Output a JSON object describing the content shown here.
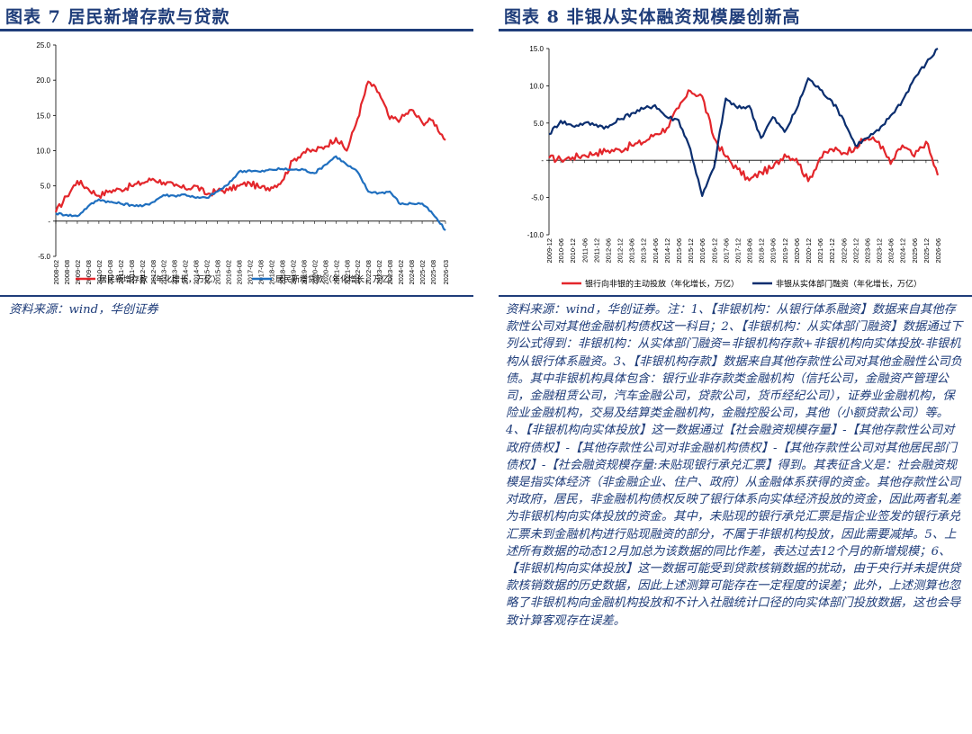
{
  "left": {
    "title": "图表 7  居民新增存款与贷款",
    "source": "资料来源：wind，华创证券",
    "chart_data": {
      "type": "line",
      "title": "",
      "xlabel": "",
      "ylabel": "",
      "ylim": [
        -5,
        25
      ],
      "yticks": [
        -5,
        0,
        5,
        10,
        15,
        20,
        25
      ],
      "ytick_labels": [
        "-5.0",
        "-",
        "5.0",
        "10.0",
        "15.0",
        "20.0",
        "25.0"
      ],
      "x_start": "2008-02",
      "x_end": "2026-03",
      "x_tick_labels": [
        "2008-02",
        "2008-08",
        "2009-02",
        "2009-08",
        "2010-02",
        "2010-08",
        "2011-02",
        "2011-08",
        "2012-02",
        "2012-08",
        "2013-02",
        "2013-08",
        "2014-02",
        "2014-08",
        "2015-02",
        "2015-08",
        "2016-02",
        "2016-08",
        "2017-02",
        "2017-08",
        "2018-02",
        "2018-08",
        "2019-02",
        "2019-08",
        "2020-02",
        "2020-08",
        "2021-02",
        "2021-08",
        "2022-02",
        "2022-08",
        "2023-02",
        "2023-08",
        "2024-02",
        "2024-08",
        "2025-02",
        "2025-08",
        "2026-03"
      ],
      "legend_position": "bottom",
      "series": [
        {
          "name": "居民新增存款（年化增长，万亿）",
          "color": "#e3262b",
          "points": [
            [
              "2008-02",
              1.3
            ],
            [
              "2008-08",
              3.5
            ],
            [
              "2009-02",
              5.7
            ],
            [
              "2009-08",
              4.6
            ],
            [
              "2010-02",
              3.6
            ],
            [
              "2010-08",
              4.3
            ],
            [
              "2011-02",
              4.5
            ],
            [
              "2011-08",
              5.0
            ],
            [
              "2012-02",
              5.4
            ],
            [
              "2012-08",
              6.0
            ],
            [
              "2013-02",
              5.5
            ],
            [
              "2013-08",
              5.0
            ],
            [
              "2014-02",
              4.6
            ],
            [
              "2014-08",
              5.0
            ],
            [
              "2015-02",
              3.8
            ],
            [
              "2015-08",
              4.3
            ],
            [
              "2016-02",
              4.4
            ],
            [
              "2016-08",
              5.0
            ],
            [
              "2017-02",
              5.4
            ],
            [
              "2017-08",
              4.7
            ],
            [
              "2018-02",
              4.8
            ],
            [
              "2018-08",
              5.7
            ],
            [
              "2019-02",
              8.6
            ],
            [
              "2019-08",
              9.8
            ],
            [
              "2020-02",
              10.0
            ],
            [
              "2020-08",
              10.6
            ],
            [
              "2021-02",
              11.8
            ],
            [
              "2021-08",
              10.0
            ],
            [
              "2022-02",
              14.5
            ],
            [
              "2022-08",
              19.8
            ],
            [
              "2023-02",
              18.2
            ],
            [
              "2023-08",
              14.5
            ],
            [
              "2024-02",
              14.5
            ],
            [
              "2024-08",
              15.8
            ],
            [
              "2025-02",
              14.0
            ],
            [
              "2025-08",
              14.3
            ],
            [
              "2026-03",
              11.5
            ]
          ]
        },
        {
          "name": "居民新增贷款（年化增长，万亿）",
          "color": "#1f6fbf",
          "points": [
            [
              "2008-02",
              1.1
            ],
            [
              "2008-08",
              0.9
            ],
            [
              "2009-02",
              0.7
            ],
            [
              "2009-08",
              2.1
            ],
            [
              "2010-02",
              3.1
            ],
            [
              "2010-08",
              2.7
            ],
            [
              "2011-02",
              2.5
            ],
            [
              "2011-08",
              2.3
            ],
            [
              "2012-02",
              2.1
            ],
            [
              "2012-08",
              2.7
            ],
            [
              "2013-02",
              3.7
            ],
            [
              "2013-08",
              3.6
            ],
            [
              "2014-02",
              3.8
            ],
            [
              "2014-08",
              3.3
            ],
            [
              "2015-02",
              3.3
            ],
            [
              "2015-08",
              4.2
            ],
            [
              "2016-02",
              5.2
            ],
            [
              "2016-08",
              7.0
            ],
            [
              "2017-02",
              7.2
            ],
            [
              "2017-08",
              7.0
            ],
            [
              "2018-02",
              7.3
            ],
            [
              "2018-08",
              7.4
            ],
            [
              "2019-02",
              7.3
            ],
            [
              "2019-08",
              7.3
            ],
            [
              "2020-02",
              6.8
            ],
            [
              "2020-08",
              8.0
            ],
            [
              "2021-02",
              9.2
            ],
            [
              "2021-08",
              8.0
            ],
            [
              "2022-02",
              7.0
            ],
            [
              "2022-08",
              4.2
            ],
            [
              "2023-02",
              4.0
            ],
            [
              "2023-08",
              4.2
            ],
            [
              "2024-02",
              2.4
            ],
            [
              "2024-08",
              2.5
            ],
            [
              "2025-02",
              2.5
            ],
            [
              "2025-08",
              1.0
            ],
            [
              "2026-03",
              -1.3
            ]
          ]
        }
      ]
    }
  },
  "right": {
    "title": "图表 8  非银从实体融资规模屡创新高",
    "source": "资料来源：wind，华创证券。注：1、【非银机构：从银行体系融资】数据来自其他存款性公司对其他金融机构债权这一科目；2、【非银机构：从实体部门融资】数据通过下列公式得到：非银机构：从实体部门融资=非银机构存款+非银机构向实体投放-非银机构从银行体系融资。3、【非银机构存款】数据来自其他存款性公司对其他金融性公司负债。其中非银机构具体包含：银行业非存款类金融机构（信托公司，金融资产管理公司，金融租赁公司，汽车金融公司，贷款公司，货币经纪公司），证券业金融机构，保险业金融机构，交易及结算类金融机构，金融控股公司，其他（小额贷款公司）等。4、【非银机构向实体投放】这一数据通过【社会融资规模存量】-【其他存款性公司对政府债权】-【其他存款性公司对非金融机构债权】-【其他存款性公司对其他居民部门债权】-【社会融资规模存量:未贴现银行承兑汇票】得到。其表征含义是：社会融资规模是指实体经济（非金融企业、住户、政府）从金融体系获得的资金。其他存款性公司对政府，居民，非金融机构债权反映了银行体系向实体经济投放的资金，因此两者轧差为非银机构向实体投放的资金。其中，未贴现的银行承兑汇票是指企业签发的银行承兑汇票未到金融机构进行贴现融资的部分，不属于非银机构投放，因此需要减掉。5、上述所有数据的动态12月加总为该数据的同比作差，表达过去12个月的新增规模；6、【非银机构向实体投放】这一数据可能受到贷款核销数据的扰动，由于央行并未提供贷款核销数据的历史数据，因此上述测算可能存在一定程度的误差；此外，上述测算也忽略了非银机构向金融机构投放和不计入社融统计口径的向实体部门投放数据，这也会导致计算客观存在误差。",
    "chart_data": {
      "type": "line",
      "title": "",
      "xlabel": "",
      "ylabel": "",
      "ylim": [
        -10,
        15
      ],
      "yticks": [
        -10,
        -5,
        0,
        5,
        10,
        15
      ],
      "ytick_labels": [
        "-10.0",
        "-5.0",
        "-",
        "5.0",
        "10.0",
        "15.0"
      ],
      "x_start": "2009-12",
      "x_end": "2026-06",
      "x_tick_labels": [
        "2009-12",
        "2010-06",
        "2010-12",
        "2011-06",
        "2011-12",
        "2012-06",
        "2012-12",
        "2013-06",
        "2013-12",
        "2014-06",
        "2014-12",
        "2015-06",
        "2015-12",
        "2016-06",
        "2016-12",
        "2017-06",
        "2017-12",
        "2018-06",
        "2018-12",
        "2019-06",
        "2019-12",
        "2020-06",
        "2020-12",
        "2021-06",
        "2021-12",
        "2022-06",
        "2022-12",
        "2023-06",
        "2023-12",
        "2024-06",
        "2024-12",
        "2025-06",
        "2025-12",
        "2026-06"
      ],
      "legend_position": "bottom",
      "series": [
        {
          "name": "银行向非银的主动投放（年化增长，万亿）",
          "color": "#e3262b",
          "points": [
            [
              "2009-12",
              0.3
            ],
            [
              "2010-06",
              0.1
            ],
            [
              "2010-12",
              0.4
            ],
            [
              "2011-06",
              0.7
            ],
            [
              "2011-12",
              1.0
            ],
            [
              "2012-06",
              1.3
            ],
            [
              "2012-12",
              1.4
            ],
            [
              "2013-06",
              2.0
            ],
            [
              "2013-12",
              2.4
            ],
            [
              "2014-06",
              3.5
            ],
            [
              "2014-12",
              4.3
            ],
            [
              "2015-06",
              7.0
            ],
            [
              "2015-12",
              9.3
            ],
            [
              "2016-06",
              8.6
            ],
            [
              "2016-12",
              3.0
            ],
            [
              "2017-06",
              0.5
            ],
            [
              "2017-12",
              -1.2
            ],
            [
              "2018-06",
              -2.7
            ],
            [
              "2018-12",
              -1.6
            ],
            [
              "2019-06",
              -1.0
            ],
            [
              "2019-12",
              0.8
            ],
            [
              "2020-06",
              0.2
            ],
            [
              "2020-12",
              -2.8
            ],
            [
              "2021-06",
              0.3
            ],
            [
              "2021-12",
              1.5
            ],
            [
              "2022-06",
              1.0
            ],
            [
              "2022-12",
              1.8
            ],
            [
              "2023-06",
              3.0
            ],
            [
              "2023-12",
              2.5
            ],
            [
              "2024-06",
              -0.5
            ],
            [
              "2024-12",
              2.0
            ],
            [
              "2025-06",
              0.5
            ],
            [
              "2025-12",
              2.5
            ],
            [
              "2026-06",
              -2.0
            ]
          ]
        },
        {
          "name": "非银从实体部门融资（年化增长，万亿）",
          "color": "#0b2e6f",
          "points": [
            [
              "2009-12",
              3.5
            ],
            [
              "2010-06",
              5.3
            ],
            [
              "2010-12",
              4.6
            ],
            [
              "2011-06",
              5.0
            ],
            [
              "2011-12",
              4.8
            ],
            [
              "2012-06",
              4.4
            ],
            [
              "2012-12",
              5.5
            ],
            [
              "2013-06",
              6.3
            ],
            [
              "2013-12",
              6.9
            ],
            [
              "2014-06",
              7.4
            ],
            [
              "2014-12",
              5.8
            ],
            [
              "2015-06",
              5.4
            ],
            [
              "2015-12",
              1.5
            ],
            [
              "2016-06",
              -4.8
            ],
            [
              "2016-12",
              -1.0
            ],
            [
              "2017-06",
              8.3
            ],
            [
              "2017-12",
              7.0
            ],
            [
              "2018-06",
              7.3
            ],
            [
              "2018-12",
              3.0
            ],
            [
              "2019-06",
              5.8
            ],
            [
              "2019-12",
              3.8
            ],
            [
              "2020-06",
              6.8
            ],
            [
              "2020-12",
              11.0
            ],
            [
              "2021-06",
              9.5
            ],
            [
              "2021-12",
              8.0
            ],
            [
              "2022-06",
              5.5
            ],
            [
              "2022-12",
              2.0
            ],
            [
              "2023-06",
              3.0
            ],
            [
              "2023-12",
              4.0
            ],
            [
              "2024-06",
              6.0
            ],
            [
              "2024-12",
              8.0
            ],
            [
              "2025-06",
              11.0
            ],
            [
              "2025-12",
              13.0
            ],
            [
              "2026-06",
              15.0
            ]
          ]
        }
      ]
    }
  }
}
